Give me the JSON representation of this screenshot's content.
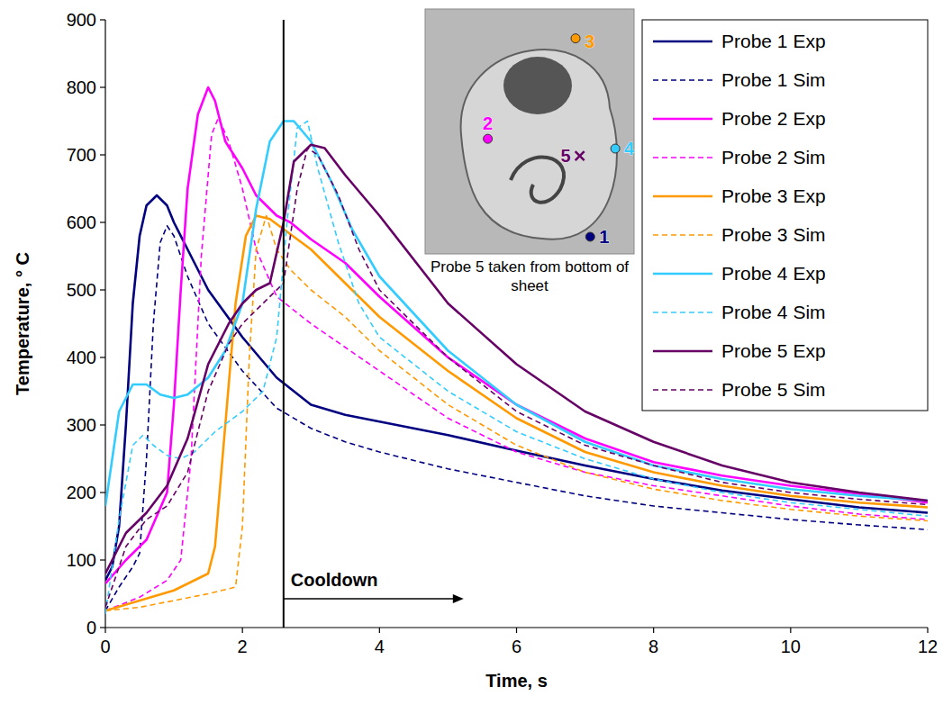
{
  "chart_data": {
    "type": "line",
    "x_label": "Time, s",
    "y_label": "Temperature, ° C",
    "xlim": [
      0,
      12
    ],
    "xticks": [
      0,
      2,
      4,
      6,
      8,
      10,
      12
    ],
    "ylim": [
      0,
      900
    ],
    "yticks": [
      0,
      100,
      200,
      300,
      400,
      500,
      600,
      700,
      800,
      900
    ],
    "grid": false,
    "legend": "upper right",
    "annotations": [
      {
        "text": "Cooldown",
        "x": 2.6
      }
    ],
    "inset": {
      "caption": "Probe 5 taken from bottom of sheet",
      "probes": [
        {
          "label": "1",
          "color": "#000080",
          "marker": "circle"
        },
        {
          "label": "2",
          "color": "#ff00ff",
          "marker": "circle"
        },
        {
          "label": "3",
          "color": "#ff9900",
          "marker": "circle"
        },
        {
          "label": "4",
          "color": "#33ccff",
          "marker": "circle"
        },
        {
          "label": "5",
          "color": "#660066",
          "marker": "cross"
        }
      ]
    },
    "series": [
      {
        "name": "Probe 1 Exp",
        "color": "#000080",
        "line_style": "solid",
        "x": [
          0,
          0.1,
          0.2,
          0.3,
          0.4,
          0.5,
          0.6,
          0.75,
          0.9,
          1.0,
          1.25,
          1.5,
          2,
          2.5,
          3,
          3.5,
          4,
          5,
          6,
          7,
          8,
          9,
          10,
          11,
          12
        ],
        "values": [
          70,
          90,
          150,
          300,
          480,
          580,
          625,
          640,
          625,
          600,
          550,
          500,
          430,
          370,
          330,
          315,
          305,
          285,
          262,
          240,
          220,
          203,
          190,
          178,
          170
        ]
      },
      {
        "name": "Probe 1 Sim",
        "color": "#000080",
        "line_style": "dashed",
        "x": [
          0,
          0.2,
          0.4,
          0.5,
          0.6,
          0.7,
          0.8,
          0.9,
          1.0,
          1.2,
          1.5,
          2,
          2.5,
          3,
          3.5,
          4,
          5,
          6,
          7,
          8,
          9,
          10,
          11,
          12
        ],
        "values": [
          25,
          60,
          90,
          110,
          250,
          450,
          570,
          595,
          580,
          520,
          450,
          380,
          325,
          295,
          275,
          260,
          235,
          215,
          195,
          180,
          170,
          160,
          152,
          145
        ]
      },
      {
        "name": "Probe 2 Exp",
        "color": "#ff00ff",
        "line_style": "solid",
        "x": [
          0,
          0.3,
          0.6,
          0.9,
          1.0,
          1.1,
          1.2,
          1.35,
          1.5,
          1.6,
          1.75,
          2,
          2.2,
          2.5,
          2.7,
          3,
          3.5,
          4,
          5,
          6,
          7,
          8,
          9,
          10,
          11,
          12
        ],
        "values": [
          65,
          100,
          130,
          200,
          330,
          500,
          650,
          760,
          800,
          780,
          720,
          680,
          640,
          610,
          600,
          575,
          540,
          490,
          400,
          330,
          280,
          245,
          225,
          210,
          198,
          185
        ]
      },
      {
        "name": "Probe 2 Sim",
        "color": "#ff00ff",
        "line_style": "dashed",
        "x": [
          0,
          0.5,
          0.9,
          1.1,
          1.25,
          1.4,
          1.55,
          1.65,
          1.8,
          2,
          2.2,
          2.5,
          3,
          3.5,
          4,
          5,
          6,
          7,
          8,
          9,
          10,
          11,
          12
        ],
        "values": [
          25,
          45,
          70,
          100,
          250,
          550,
          730,
          755,
          720,
          650,
          560,
          490,
          450,
          415,
          380,
          310,
          260,
          230,
          210,
          195,
          180,
          168,
          160
        ]
      },
      {
        "name": "Probe 3 Exp",
        "color": "#ff9900",
        "line_style": "solid",
        "x": [
          0,
          0.5,
          1,
          1.5,
          1.6,
          1.75,
          1.9,
          2.05,
          2.2,
          2.4,
          2.6,
          3,
          3.5,
          4,
          5,
          6,
          7,
          8,
          9,
          10,
          11,
          12
        ],
        "values": [
          25,
          40,
          55,
          80,
          120,
          300,
          480,
          580,
          610,
          605,
          590,
          560,
          510,
          460,
          380,
          310,
          260,
          230,
          210,
          195,
          185,
          178
        ]
      },
      {
        "name": "Probe 3 Sim",
        "color": "#ff9900",
        "line_style": "dashed",
        "x": [
          0,
          0.5,
          1,
          1.5,
          1.9,
          2.0,
          2.1,
          2.2,
          2.35,
          2.5,
          2.7,
          3,
          3.5,
          4,
          5,
          6,
          7,
          8,
          9,
          10,
          11,
          12
        ],
        "values": [
          25,
          30,
          40,
          50,
          60,
          150,
          400,
          560,
          610,
          560,
          530,
          500,
          460,
          410,
          330,
          270,
          230,
          205,
          188,
          175,
          165,
          158
        ]
      },
      {
        "name": "Probe 4 Exp",
        "color": "#33ccff",
        "line_style": "solid",
        "x": [
          0,
          0.2,
          0.4,
          0.6,
          0.8,
          1.0,
          1.2,
          1.5,
          1.75,
          2,
          2.2,
          2.4,
          2.6,
          2.75,
          3,
          3.3,
          3.6,
          4,
          5,
          6,
          7,
          8,
          9,
          10,
          11,
          12
        ],
        "values": [
          180,
          320,
          360,
          360,
          345,
          340,
          345,
          370,
          410,
          480,
          620,
          720,
          750,
          750,
          720,
          660,
          590,
          520,
          410,
          330,
          275,
          240,
          220,
          205,
          195,
          188
        ]
      },
      {
        "name": "Probe 4 Sim",
        "color": "#33ccff",
        "line_style": "dashed",
        "x": [
          0,
          0.2,
          0.4,
          0.55,
          0.7,
          0.9,
          1.1,
          1.3,
          1.6,
          2,
          2.3,
          2.5,
          2.65,
          2.8,
          2.95,
          3.1,
          3.4,
          3.7,
          4,
          5,
          6,
          7,
          8,
          9,
          10,
          11,
          12
        ],
        "values": [
          20,
          160,
          270,
          285,
          270,
          255,
          250,
          260,
          290,
          320,
          350,
          430,
          600,
          740,
          750,
          680,
          570,
          480,
          430,
          350,
          290,
          250,
          220,
          200,
          185,
          175,
          165
        ]
      },
      {
        "name": "Probe 5 Exp",
        "color": "#660066",
        "line_style": "solid",
        "x": [
          0,
          0.3,
          0.6,
          0.9,
          1.2,
          1.5,
          1.8,
          2,
          2.2,
          2.4,
          2.6,
          2.75,
          3,
          3.2,
          3.5,
          4,
          5,
          6,
          7,
          8,
          9,
          10,
          11,
          12
        ],
        "values": [
          80,
          140,
          170,
          210,
          280,
          390,
          450,
          480,
          500,
          510,
          600,
          690,
          715,
          710,
          670,
          610,
          480,
          390,
          320,
          275,
          240,
          215,
          200,
          188
        ]
      },
      {
        "name": "Probe 5 Sim",
        "color": "#660066",
        "line_style": "dashed",
        "x": [
          0,
          0.3,
          0.6,
          0.9,
          1.2,
          1.5,
          1.8,
          2,
          2.3,
          2.6,
          2.8,
          2.95,
          3.1,
          3.4,
          3.7,
          4,
          5,
          6,
          7,
          8,
          9,
          10,
          11,
          12
        ],
        "values": [
          30,
          120,
          160,
          180,
          230,
          350,
          420,
          450,
          480,
          510,
          650,
          710,
          700,
          640,
          560,
          500,
          400,
          320,
          270,
          240,
          215,
          200,
          190,
          182
        ]
      }
    ]
  }
}
